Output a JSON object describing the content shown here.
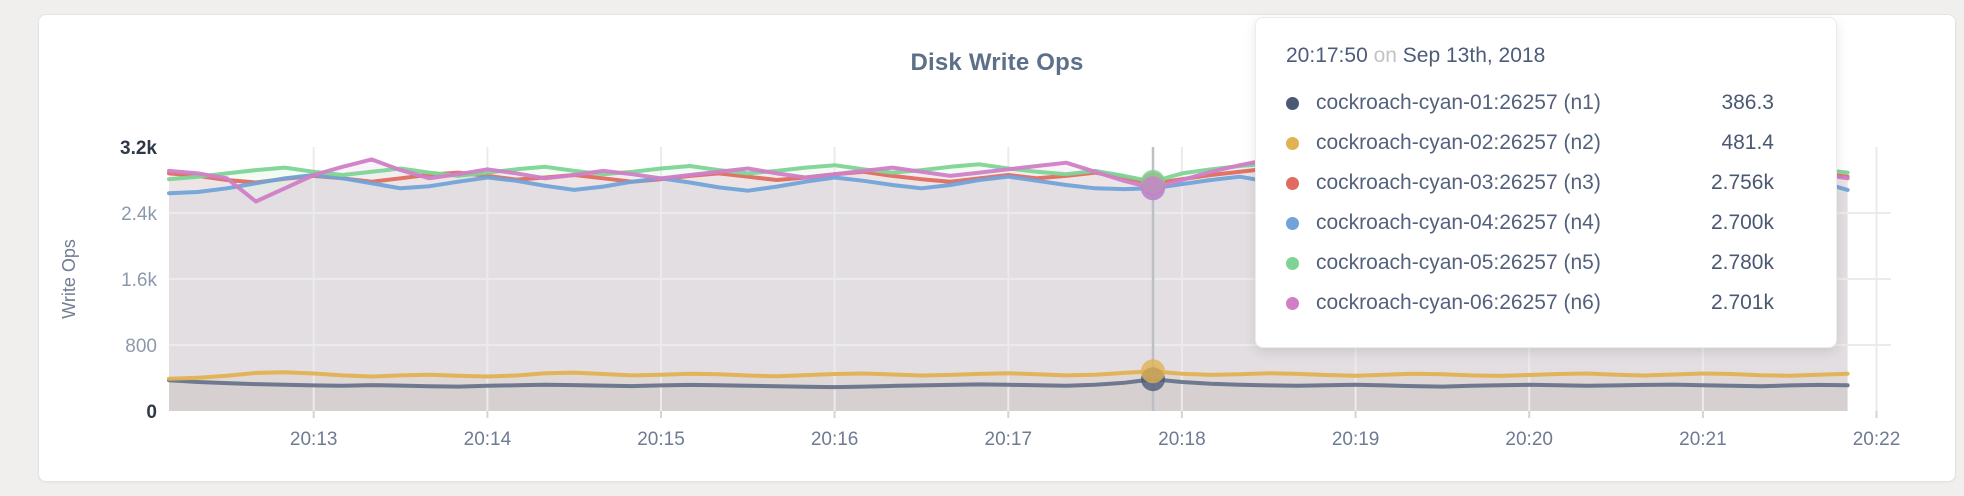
{
  "chart": {
    "title": "Disk Write Ops",
    "y_axis": {
      "label": "Write Ops"
    },
    "colors": {
      "grid": "#ebebeb",
      "tick_stub": "#d6d4d0",
      "hover_line": "#bcbfc4",
      "axis_text": "#6e7b92",
      "axis_text_major": "#2e3847",
      "title_text": "#5c7089",
      "card_border": "#e3e3e1",
      "page_background": "#f0efee"
    }
  },
  "tooltip": {
    "time": "20:17:50",
    "conjunction": "on",
    "date": "Sep 13th, 2018",
    "rows": [
      {
        "name": "cockroach-cyan-01:26257 (n1)",
        "value": "386.3",
        "dot_color": "#4a5a76"
      },
      {
        "name": "cockroach-cyan-02:26257 (n2)",
        "value": "481.4",
        "dot_color": "#e2b152"
      },
      {
        "name": "cockroach-cyan-03:26257 (n3)",
        "value": "2.756k",
        "dot_color": "#e06c61"
      },
      {
        "name": "cockroach-cyan-04:26257 (n4)",
        "value": "2.700k",
        "dot_color": "#72a3d8"
      },
      {
        "name": "cockroach-cyan-05:26257 (n5)",
        "value": "2.780k",
        "dot_color": "#7ed495"
      },
      {
        "name": "cockroach-cyan-06:26257 (n6)",
        "value": "2.701k",
        "dot_color": "#d07fc7"
      }
    ]
  },
  "chart_data": {
    "type": "line",
    "title": "Disk Write Ops",
    "xlabel": "",
    "ylabel": "Write Ops",
    "ylim": [
      0,
      3200
    ],
    "grid": true,
    "legend_position": "tooltip-only",
    "x_domain_seconds": [
      730,
      1325
    ],
    "sample_start_seconds": 730,
    "sample_interval_seconds": 10,
    "x_ticks": [
      {
        "label": "20:13",
        "seconds": 780
      },
      {
        "label": "20:14",
        "seconds": 840
      },
      {
        "label": "20:15",
        "seconds": 900
      },
      {
        "label": "20:16",
        "seconds": 960
      },
      {
        "label": "20:17",
        "seconds": 1020
      },
      {
        "label": "20:18",
        "seconds": 1080
      },
      {
        "label": "20:19",
        "seconds": 1140
      },
      {
        "label": "20:20",
        "seconds": 1200
      },
      {
        "label": "20:21",
        "seconds": 1260
      },
      {
        "label": "20:22",
        "seconds": 1320
      }
    ],
    "y_ticks": [
      {
        "label": "0",
        "value": 0,
        "major": true,
        "grid": false
      },
      {
        "label": "800",
        "value": 800,
        "major": false,
        "grid": true
      },
      {
        "label": "1.6k",
        "value": 1600,
        "major": false,
        "grid": true
      },
      {
        "label": "2.4k",
        "value": 2400,
        "major": false,
        "grid": true
      },
      {
        "label": "3.2k",
        "value": 3200,
        "major": true,
        "grid": false
      }
    ],
    "hover": {
      "label": "20:17:50",
      "seconds": 1070
    },
    "series": [
      {
        "id": "n1",
        "name": "cockroach-cyan-01:26257 (n1)",
        "color": "#68748b",
        "dot_color": "#4a5a76",
        "hover_value": 386.3,
        "values": [
          372,
          352,
          338,
          326,
          318,
          310,
          306,
          314,
          308,
          300,
          296,
          306,
          312,
          318,
          314,
          308,
          302,
          310,
          316,
          312,
          306,
          300,
          295,
          290,
          296,
          304,
          310,
          316,
          322,
          318,
          312,
          306,
          318,
          342,
          386,
          352,
          330,
          318,
          310,
          305,
          312,
          318,
          310,
          302,
          296,
          305,
          312,
          318,
          312,
          305,
          310,
          316,
          320,
          312,
          306,
          300,
          310,
          316,
          312
        ]
      },
      {
        "id": "n2",
        "name": "cockroach-cyan-02:26257 (n2)",
        "color": "#e2b152",
        "dot_color": "#e2b152",
        "hover_value": 481.4,
        "values": [
          390,
          402,
          428,
          462,
          470,
          455,
          432,
          418,
          432,
          440,
          428,
          418,
          430,
          458,
          465,
          448,
          432,
          440,
          452,
          445,
          430,
          422,
          435,
          448,
          455,
          442,
          430,
          438,
          450,
          458,
          445,
          432,
          440,
          462,
          481,
          452,
          438,
          446,
          458,
          450,
          436,
          428,
          440,
          452,
          446,
          432,
          425,
          436,
          448,
          454,
          440,
          430,
          442,
          455,
          448,
          434,
          428,
          440,
          452
        ]
      },
      {
        "id": "n3",
        "name": "cockroach-cyan-03:26257 (n3)",
        "color": "#e06c61",
        "dot_color": "#e06c61",
        "hover_value": 2756,
        "values": [
          2880,
          2850,
          2800,
          2770,
          2815,
          2850,
          2820,
          2780,
          2820,
          2865,
          2890,
          2850,
          2805,
          2830,
          2860,
          2820,
          2780,
          2810,
          2850,
          2880,
          2840,
          2800,
          2830,
          2870,
          2900,
          2850,
          2810,
          2780,
          2820,
          2860,
          2820,
          2850,
          2890,
          2830,
          2756,
          2810,
          2860,
          2900,
          2940,
          2870,
          2820,
          2780,
          2830,
          2860,
          2820,
          2770,
          2800,
          2850,
          2880,
          2830,
          2790,
          2820,
          2860,
          2820,
          2780,
          2810,
          2850,
          2880,
          2840
        ]
      },
      {
        "id": "n4",
        "name": "cockroach-cyan-04:26257 (n4)",
        "color": "#72a3d8",
        "dot_color": "#72a3d8",
        "hover_value": 2700,
        "values": [
          2640,
          2655,
          2700,
          2760,
          2820,
          2860,
          2820,
          2760,
          2700,
          2725,
          2780,
          2830,
          2790,
          2730,
          2680,
          2720,
          2780,
          2820,
          2770,
          2710,
          2670,
          2720,
          2780,
          2830,
          2790,
          2740,
          2700,
          2740,
          2800,
          2840,
          2790,
          2740,
          2700,
          2690,
          2700,
          2750,
          2800,
          2840,
          2780,
          2720,
          2670,
          2640,
          2700,
          2760,
          2810,
          2770,
          2710,
          2660,
          2700,
          2760,
          2800,
          2750,
          2700,
          2660,
          2710,
          2770,
          2820,
          2780,
          2680
        ]
      },
      {
        "id": "n5",
        "name": "cockroach-cyan-05:26257 (n5)",
        "color": "#7ed495",
        "dot_color": "#7ed495",
        "hover_value": 2780,
        "values": [
          2810,
          2840,
          2880,
          2920,
          2950,
          2900,
          2860,
          2900,
          2940,
          2890,
          2850,
          2890,
          2930,
          2960,
          2910,
          2870,
          2900,
          2940,
          2970,
          2920,
          2880,
          2910,
          2950,
          2980,
          2930,
          2890,
          2920,
          2960,
          2990,
          2940,
          2900,
          2870,
          2910,
          2850,
          2780,
          2880,
          2930,
          2970,
          3000,
          2950,
          2900,
          2930,
          2960,
          2920,
          2880,
          2910,
          2950,
          2980,
          2930,
          2890,
          2920,
          2950,
          2910,
          2870,
          2900,
          2940,
          2970,
          2930,
          2890
        ]
      },
      {
        "id": "n6",
        "name": "cockroach-cyan-06:26257 (n6)",
        "color": "#d07fc7",
        "dot_color": "#d07fc7",
        "hover_value": 2701,
        "values": [
          2910,
          2880,
          2820,
          2540,
          2700,
          2860,
          2960,
          3050,
          2920,
          2820,
          2870,
          2930,
          2880,
          2820,
          2860,
          2910,
          2870,
          2820,
          2860,
          2900,
          2940,
          2880,
          2830,
          2870,
          2910,
          2950,
          2900,
          2850,
          2890,
          2930,
          2970,
          3010,
          2900,
          2790,
          2701,
          2800,
          2900,
          2980,
          3050,
          2950,
          2860,
          2900,
          2940,
          2890,
          2840,
          2880,
          2920,
          2960,
          2910,
          2860,
          2900,
          2940,
          2980,
          3020,
          2960,
          2890,
          2830,
          2870,
          2820
        ]
      }
    ]
  }
}
